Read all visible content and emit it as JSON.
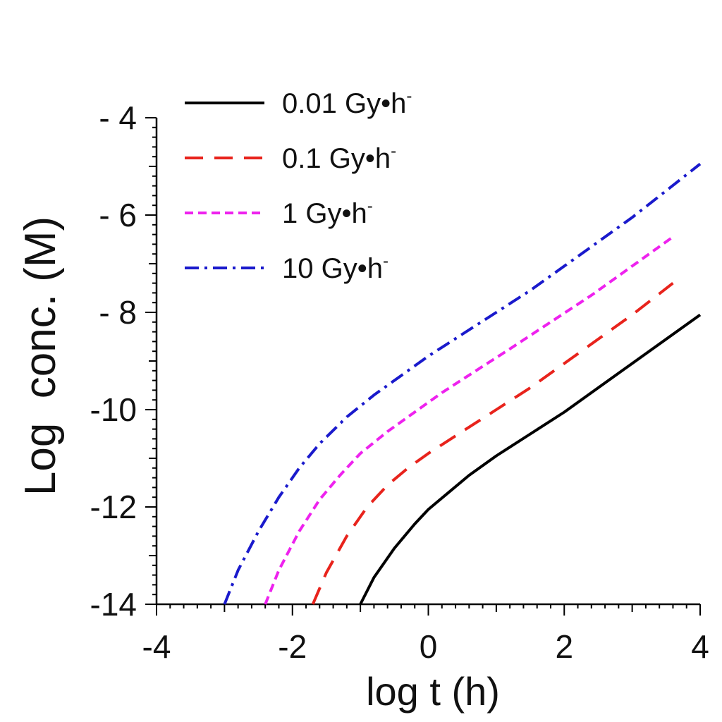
{
  "chart_data": {
    "type": "line",
    "title": "",
    "xlabel": "log t (h)",
    "ylabel": "Log  conc. (M)",
    "xlim": [
      -4,
      4
    ],
    "ylim": [
      -14,
      -4
    ],
    "xticks": [
      -4,
      -2,
      0,
      2,
      4
    ],
    "xtick_labels": [
      "-4",
      "-2",
      "0",
      "2",
      "4"
    ],
    "yticks": [
      -4,
      -6,
      -8,
      -10,
      -12,
      -14
    ],
    "ytick_labels": [
      "- 4",
      "- 6",
      "- 8",
      "-10",
      "-12",
      "-14"
    ],
    "grid": false,
    "legend_position": "top-left",
    "series": [
      {
        "name": "0.01 Gy•h",
        "superscript": "-",
        "color": "#000000",
        "style": "solid",
        "x": [
          -1.0,
          -0.8,
          -0.5,
          -0.2,
          0.0,
          0.3,
          0.6,
          1.0,
          1.5,
          2.0,
          2.5,
          3.0,
          3.5,
          4.0
        ],
        "y": [
          -14.0,
          -13.45,
          -12.85,
          -12.35,
          -12.05,
          -11.7,
          -11.35,
          -10.95,
          -10.5,
          -10.05,
          -9.55,
          -9.05,
          -8.55,
          -8.05
        ]
      },
      {
        "name": "0.1 Gy•h",
        "superscript": "-",
        "color": "#e8231c",
        "style": "dashed",
        "x": [
          -1.7,
          -1.5,
          -1.2,
          -0.9,
          -0.6,
          -0.3,
          0.0,
          0.5,
          1.0,
          1.5,
          2.0,
          2.5,
          3.0,
          3.6
        ],
        "y": [
          -14.0,
          -13.35,
          -12.6,
          -12.0,
          -11.55,
          -11.2,
          -10.9,
          -10.45,
          -10.0,
          -9.55,
          -9.05,
          -8.55,
          -8.05,
          -7.4
        ]
      },
      {
        "name": "1 Gy•h",
        "superscript": "-",
        "color": "#ee22ee",
        "style": "short-dashed",
        "x": [
          -2.4,
          -2.2,
          -1.9,
          -1.6,
          -1.3,
          -1.0,
          -0.6,
          -0.2,
          0.2,
          0.7,
          1.2,
          1.8,
          2.4,
          3.0,
          3.6
        ],
        "y": [
          -14.0,
          -13.3,
          -12.5,
          -11.85,
          -11.35,
          -10.9,
          -10.45,
          -10.05,
          -9.65,
          -9.2,
          -8.75,
          -8.2,
          -7.65,
          -7.05,
          -6.45
        ]
      },
      {
        "name": "10 Gy•h",
        "superscript": "-",
        "color": "#1a1acc",
        "style": "dash-dot",
        "x": [
          -3.0,
          -2.8,
          -2.5,
          -2.2,
          -1.9,
          -1.6,
          -1.2,
          -0.8,
          -0.4,
          0.0,
          0.5,
          1.0,
          1.5,
          2.0,
          2.5,
          3.0,
          3.5,
          4.0
        ],
        "y": [
          -14.0,
          -13.3,
          -12.5,
          -11.8,
          -11.2,
          -10.7,
          -10.15,
          -9.7,
          -9.3,
          -8.9,
          -8.45,
          -8.0,
          -7.55,
          -7.05,
          -6.55,
          -6.05,
          -5.5,
          -4.95
        ]
      }
    ]
  }
}
